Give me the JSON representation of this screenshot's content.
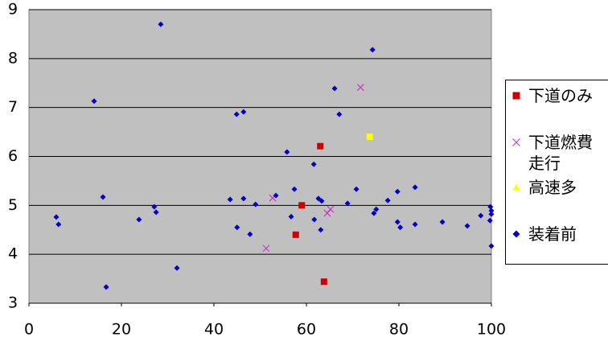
{
  "chart_data": {
    "type": "scatter",
    "xlim": [
      0,
      100
    ],
    "xticks": [
      0,
      20,
      40,
      60,
      80,
      100
    ],
    "ylim": [
      3,
      9
    ],
    "yticks": [
      3,
      4,
      5,
      6,
      7,
      8,
      9
    ],
    "grid": true,
    "legend": "right",
    "series": [
      {
        "name": "下道のみ",
        "color": "#cc0000",
        "marker": "square",
        "legend_marker": "square",
        "x": [
          59.0,
          57.7,
          63.0,
          63.8
        ],
        "values": [
          5.0,
          4.4,
          6.21,
          3.44
        ]
      },
      {
        "name": "下道燃費走行",
        "color": "#cc33cc",
        "marker": "x",
        "legend_marker": "x",
        "x": [
          71.7,
          52.7,
          51.3,
          64.5,
          65.2
        ],
        "values": [
          7.41,
          5.15,
          4.12,
          4.84,
          4.92
        ]
      },
      {
        "name": "高速多",
        "color": "#ffff00",
        "marker": "square",
        "legend_marker": "triangle",
        "x": [
          73.7
        ],
        "values": [
          6.4
        ]
      },
      {
        "name": "装着前",
        "color": "#0000cc",
        "marker": "diamond",
        "legend_marker": "diamond",
        "x": [
          28.5,
          74.3,
          14.1,
          44.9,
          46.4,
          66.1,
          67.1,
          55.8,
          61.6,
          5.9,
          6.4,
          16.0,
          16.7,
          23.8,
          27.1,
          27.5,
          32.0,
          43.5,
          45.0,
          46.4,
          47.8,
          49.0,
          53.4,
          56.7,
          57.4,
          61.7,
          62.6,
          63.3,
          63.1,
          68.9,
          70.8,
          74.6,
          75.1,
          77.6,
          79.7,
          79.7,
          80.3,
          83.5,
          83.5,
          89.4,
          94.8,
          97.7,
          99.8,
          100,
          100,
          99.7,
          100
        ],
        "values": [
          8.7,
          8.18,
          7.13,
          6.86,
          6.91,
          7.39,
          6.86,
          6.09,
          5.84,
          4.76,
          4.61,
          5.17,
          3.33,
          4.71,
          4.97,
          4.86,
          3.72,
          5.12,
          4.55,
          5.14,
          4.41,
          5.02,
          5.2,
          4.77,
          5.33,
          4.71,
          5.14,
          5.09,
          4.5,
          5.04,
          5.33,
          4.84,
          4.92,
          5.1,
          5.28,
          4.66,
          4.55,
          5.37,
          4.61,
          4.66,
          4.58,
          4.79,
          4.97,
          4.89,
          4.82,
          4.69,
          4.17
        ]
      }
    ]
  }
}
